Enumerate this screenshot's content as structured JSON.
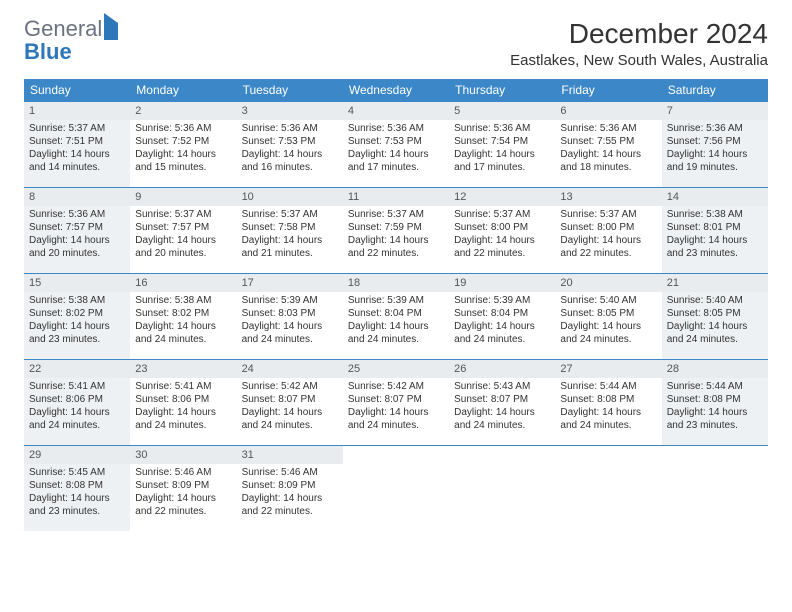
{
  "logo": {
    "part1": "General",
    "part2": "Blue"
  },
  "title": "December 2024",
  "location": "Eastlakes, New South Wales, Australia",
  "colors": {
    "header_bg": "#3b87c8",
    "header_text": "#ffffff",
    "border": "#3b87c8",
    "shaded_bg": "#eef1f3",
    "text": "#333333",
    "logo_gray": "#6b7280",
    "logo_blue": "#2e77b8"
  },
  "weekdays": [
    "Sunday",
    "Monday",
    "Tuesday",
    "Wednesday",
    "Thursday",
    "Friday",
    "Saturday"
  ],
  "days": [
    {
      "n": "1",
      "sr": "5:37 AM",
      "ss": "7:51 PM",
      "dl": "14 hours and 14 minutes.",
      "shade": true
    },
    {
      "n": "2",
      "sr": "5:36 AM",
      "ss": "7:52 PM",
      "dl": "14 hours and 15 minutes."
    },
    {
      "n": "3",
      "sr": "5:36 AM",
      "ss": "7:53 PM",
      "dl": "14 hours and 16 minutes."
    },
    {
      "n": "4",
      "sr": "5:36 AM",
      "ss": "7:53 PM",
      "dl": "14 hours and 17 minutes."
    },
    {
      "n": "5",
      "sr": "5:36 AM",
      "ss": "7:54 PM",
      "dl": "14 hours and 17 minutes."
    },
    {
      "n": "6",
      "sr": "5:36 AM",
      "ss": "7:55 PM",
      "dl": "14 hours and 18 minutes."
    },
    {
      "n": "7",
      "sr": "5:36 AM",
      "ss": "7:56 PM",
      "dl": "14 hours and 19 minutes.",
      "shade": true
    },
    {
      "n": "8",
      "sr": "5:36 AM",
      "ss": "7:57 PM",
      "dl": "14 hours and 20 minutes.",
      "shade": true
    },
    {
      "n": "9",
      "sr": "5:37 AM",
      "ss": "7:57 PM",
      "dl": "14 hours and 20 minutes."
    },
    {
      "n": "10",
      "sr": "5:37 AM",
      "ss": "7:58 PM",
      "dl": "14 hours and 21 minutes."
    },
    {
      "n": "11",
      "sr": "5:37 AM",
      "ss": "7:59 PM",
      "dl": "14 hours and 22 minutes."
    },
    {
      "n": "12",
      "sr": "5:37 AM",
      "ss": "8:00 PM",
      "dl": "14 hours and 22 minutes."
    },
    {
      "n": "13",
      "sr": "5:37 AM",
      "ss": "8:00 PM",
      "dl": "14 hours and 22 minutes."
    },
    {
      "n": "14",
      "sr": "5:38 AM",
      "ss": "8:01 PM",
      "dl": "14 hours and 23 minutes.",
      "shade": true
    },
    {
      "n": "15",
      "sr": "5:38 AM",
      "ss": "8:02 PM",
      "dl": "14 hours and 23 minutes.",
      "shade": true
    },
    {
      "n": "16",
      "sr": "5:38 AM",
      "ss": "8:02 PM",
      "dl": "14 hours and 24 minutes."
    },
    {
      "n": "17",
      "sr": "5:39 AM",
      "ss": "8:03 PM",
      "dl": "14 hours and 24 minutes."
    },
    {
      "n": "18",
      "sr": "5:39 AM",
      "ss": "8:04 PM",
      "dl": "14 hours and 24 minutes."
    },
    {
      "n": "19",
      "sr": "5:39 AM",
      "ss": "8:04 PM",
      "dl": "14 hours and 24 minutes."
    },
    {
      "n": "20",
      "sr": "5:40 AM",
      "ss": "8:05 PM",
      "dl": "14 hours and 24 minutes."
    },
    {
      "n": "21",
      "sr": "5:40 AM",
      "ss": "8:05 PM",
      "dl": "14 hours and 24 minutes.",
      "shade": true
    },
    {
      "n": "22",
      "sr": "5:41 AM",
      "ss": "8:06 PM",
      "dl": "14 hours and 24 minutes.",
      "shade": true
    },
    {
      "n": "23",
      "sr": "5:41 AM",
      "ss": "8:06 PM",
      "dl": "14 hours and 24 minutes."
    },
    {
      "n": "24",
      "sr": "5:42 AM",
      "ss": "8:07 PM",
      "dl": "14 hours and 24 minutes."
    },
    {
      "n": "25",
      "sr": "5:42 AM",
      "ss": "8:07 PM",
      "dl": "14 hours and 24 minutes."
    },
    {
      "n": "26",
      "sr": "5:43 AM",
      "ss": "8:07 PM",
      "dl": "14 hours and 24 minutes."
    },
    {
      "n": "27",
      "sr": "5:44 AM",
      "ss": "8:08 PM",
      "dl": "14 hours and 24 minutes."
    },
    {
      "n": "28",
      "sr": "5:44 AM",
      "ss": "8:08 PM",
      "dl": "14 hours and 23 minutes.",
      "shade": true
    },
    {
      "n": "29",
      "sr": "5:45 AM",
      "ss": "8:08 PM",
      "dl": "14 hours and 23 minutes.",
      "shade": true
    },
    {
      "n": "30",
      "sr": "5:46 AM",
      "ss": "8:09 PM",
      "dl": "14 hours and 22 minutes."
    },
    {
      "n": "31",
      "sr": "5:46 AM",
      "ss": "8:09 PM",
      "dl": "14 hours and 22 minutes."
    }
  ],
  "labels": {
    "sunrise": "Sunrise: ",
    "sunset": "Sunset: ",
    "daylight": "Daylight: "
  }
}
